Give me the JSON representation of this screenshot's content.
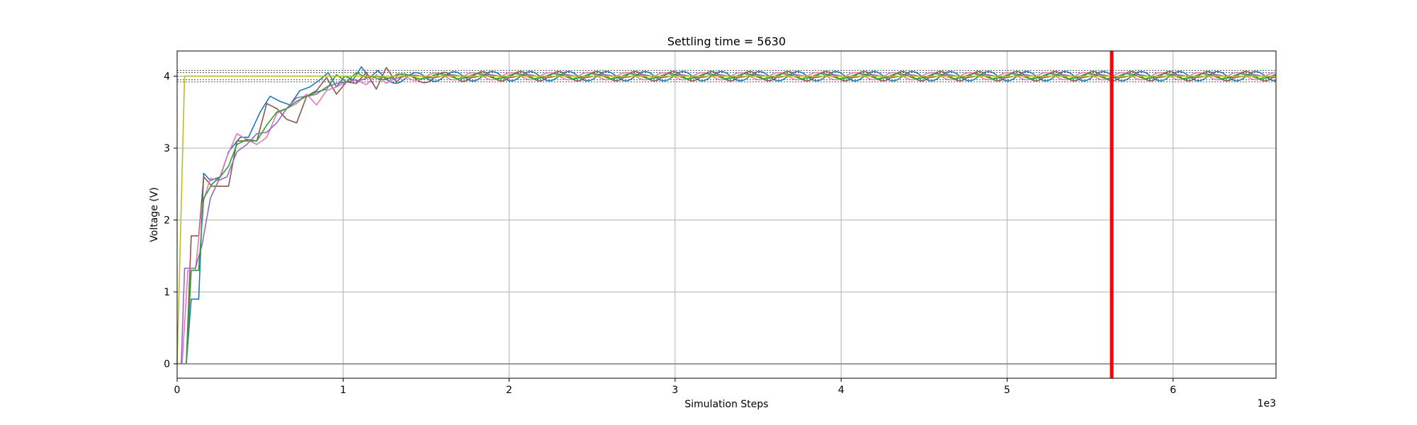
{
  "chart_data": {
    "type": "line",
    "title": "Settling time = 5630",
    "xlabel": "Simulation Steps",
    "ylabel": "Voltage (V)",
    "x_offset_label": "1e3",
    "xlim": [
      0,
      6620
    ],
    "ylim": [
      -0.2,
      4.35
    ],
    "x_ticks": [
      0,
      1000,
      2000,
      3000,
      4000,
      5000,
      6000
    ],
    "x_tick_labels": [
      "0",
      "1",
      "2",
      "3",
      "4",
      "5",
      "6"
    ],
    "y_ticks": [
      0,
      1,
      2,
      3,
      4
    ],
    "y_tick_labels": [
      "0",
      "1",
      "2",
      "3",
      "4"
    ],
    "grid": true,
    "target_voltage": 4.0,
    "tolerance_bands": [
      3.92,
      3.95,
      4.05,
      4.08
    ],
    "settling_line": {
      "x": 5630,
      "color": "#ff0000"
    },
    "setpoint_series": {
      "x": [
        0,
        45,
        6620
      ],
      "y": [
        0,
        4.0,
        4.0
      ],
      "color": "#bcbd22"
    },
    "series": [
      {
        "color": "#1f77b4",
        "step_x": [
          0,
          55,
          85,
          130,
          160,
          200,
          260,
          310,
          380,
          430,
          500,
          560,
          620,
          680,
          740,
          800,
          860,
          910,
          960,
          1010,
          1060,
          1110,
          1160,
          1210,
          1260
        ],
        "step_y": [
          0,
          0,
          0.9,
          0.9,
          2.65,
          2.55,
          2.6,
          2.95,
          3.15,
          3.15,
          3.5,
          3.72,
          3.65,
          3.6,
          3.8,
          3.85,
          3.95,
          4.05,
          3.85,
          4.0,
          3.95,
          4.13,
          3.98,
          4.08,
          3.95
        ],
        "osc_start": 1260,
        "osc_amp": 0.065,
        "osc_period": 230,
        "osc_phase": 0.0
      },
      {
        "color": "#8c564b",
        "step_x": [
          0,
          55,
          85,
          130,
          160,
          210,
          260,
          310,
          360,
          420,
          480,
          540,
          600,
          660,
          720,
          780,
          840,
          900,
          960,
          1020,
          1080,
          1140,
          1200,
          1260,
          1320
        ],
        "step_y": [
          0,
          0,
          1.78,
          1.78,
          2.6,
          2.47,
          2.47,
          2.47,
          3.1,
          3.1,
          3.1,
          3.62,
          3.55,
          3.4,
          3.35,
          3.72,
          3.8,
          3.98,
          3.75,
          3.92,
          3.9,
          4.05,
          3.82,
          4.12,
          3.92
        ],
        "osc_start": 1320,
        "osc_amp": 0.065,
        "osc_period": 230,
        "osc_phase": 1.6
      },
      {
        "color": "#e377c2",
        "step_x": [
          0,
          30,
          65,
          110,
          150,
          200,
          250,
          300,
          360,
          420,
          480,
          540,
          600,
          660,
          720,
          780,
          840,
          900,
          960,
          1020,
          1080,
          1140,
          1200,
          1260,
          1320
        ],
        "step_y": [
          0,
          0,
          1.3,
          1.3,
          2.2,
          2.58,
          2.55,
          2.88,
          3.2,
          3.12,
          3.05,
          3.15,
          3.48,
          3.55,
          3.62,
          3.75,
          3.6,
          3.8,
          3.85,
          3.92,
          3.95,
          3.88,
          4.02,
          3.9,
          3.98
        ],
        "osc_start": 1320,
        "osc_amp": 0.05,
        "osc_period": 230,
        "osc_phase": 3.1
      },
      {
        "color": "#9467bd",
        "step_x": [
          0,
          25,
          45,
          110,
          150,
          200,
          250,
          300,
          360,
          420,
          480,
          540,
          600,
          660,
          720,
          780,
          840,
          900,
          960,
          1020,
          1080
        ],
        "step_y": [
          0,
          0,
          1.33,
          1.33,
          1.65,
          2.3,
          2.55,
          2.6,
          2.95,
          3.05,
          3.2,
          3.22,
          3.35,
          3.55,
          3.7,
          3.72,
          3.75,
          3.85,
          3.9,
          3.92,
          3.95
        ],
        "osc_start": 1080,
        "osc_amp": 0.02,
        "osc_period": 230,
        "osc_phase": 0.5
      },
      {
        "color": "#2ca02c",
        "step_x": [
          0,
          55,
          85,
          130,
          160,
          210,
          260,
          310,
          360,
          420,
          480,
          540,
          600,
          660,
          720,
          780,
          840,
          900,
          960,
          1020,
          1080,
          1140
        ],
        "step_y": [
          0,
          0,
          1.3,
          1.3,
          2.3,
          2.5,
          2.6,
          2.75,
          3.05,
          3.12,
          3.1,
          3.32,
          3.5,
          3.55,
          3.65,
          3.72,
          3.78,
          3.82,
          4.02,
          3.92,
          4.05,
          3.98
        ],
        "osc_start": 1140,
        "osc_amp": 0.035,
        "osc_period": 230,
        "osc_phase": 2.2
      },
      {
        "color": "#7f7f7f",
        "step_x": [
          0,
          6620
        ],
        "step_y": [
          0,
          0
        ],
        "osc_start": 999999,
        "osc_amp": 0,
        "osc_period": 230,
        "osc_phase": 0
      }
    ]
  }
}
